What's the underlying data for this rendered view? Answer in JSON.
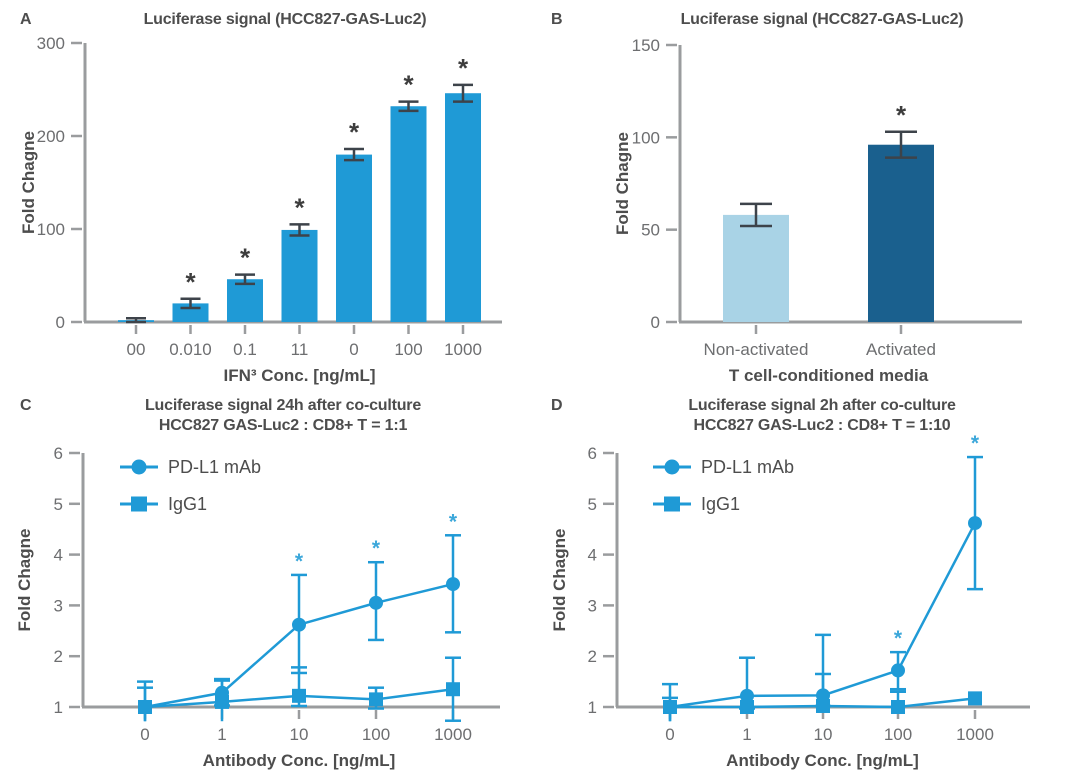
{
  "colors": {
    "primary_blue": "#1f9ad6",
    "light_blue_bar": "#a9d3e6",
    "dark_blue_bar": "#1a608e",
    "error_bar_dark": "#3d434a",
    "axis_gray": "#9a9c9e",
    "tick_label_gray": "#6d6e70",
    "heading_text": "#4d4d4d",
    "star_dark": "#3d3d3d",
    "star_blue": "#3ba7da"
  },
  "chart_data": [
    {
      "panel": "A",
      "type": "bar",
      "title": "Luciferase signal (HCC827-GAS-Luc2)",
      "subtitle": "",
      "ylabel": "Fold Chagne",
      "xlabel": "IFN³ Conc. [ng/mL]",
      "ylim": [
        0,
        300
      ],
      "yticks": [
        0,
        100,
        200,
        300
      ],
      "categories": [
        "00",
        "0.010",
        "0.1",
        "11",
        "0",
        "100",
        "1000"
      ],
      "values": [
        2,
        20,
        46,
        99,
        180,
        232,
        246
      ],
      "errors": [
        2,
        5,
        5,
        6,
        6,
        5,
        9
      ],
      "significant": [
        false,
        true,
        true,
        true,
        true,
        true,
        true
      ],
      "bar_colors": [
        "#1f9ad6",
        "#1f9ad6",
        "#1f9ad6",
        "#1f9ad6",
        "#1f9ad6",
        "#1f9ad6",
        "#1f9ad6"
      ],
      "grid": false,
      "legend": null
    },
    {
      "panel": "B",
      "type": "bar",
      "title": "Luciferase signal (HCC827-GAS-Luc2)",
      "subtitle": "",
      "ylabel": "Fold Chagne",
      "xlabel": "T cell-conditioned media",
      "ylim": [
        0,
        150
      ],
      "yticks": [
        0,
        50,
        100,
        150
      ],
      "categories": [
        "Non-activated",
        "Activated"
      ],
      "values": [
        58,
        96
      ],
      "errors": [
        6,
        7
      ],
      "significant": [
        false,
        true
      ],
      "bar_colors": [
        "#a9d3e6",
        "#1a608e"
      ],
      "grid": false,
      "legend": null
    },
    {
      "panel": "C",
      "type": "line",
      "title": "Luciferase signal 24h after co-culture",
      "subtitle": "HCC827 GAS-Luc2 : CD8+ T = 1:1",
      "ylabel": "Fold Chagne",
      "xlabel": "Antibody Conc. [ng/mL]",
      "ylim": [
        1,
        6
      ],
      "yticks": [
        1,
        2,
        3,
        4,
        5,
        6
      ],
      "categories": [
        "0",
        "1",
        "10",
        "100",
        "1000"
      ],
      "grid": false,
      "legend": "top-left",
      "series": [
        {
          "name": "PD-L1 mAb",
          "marker": "circle",
          "values": [
            1.0,
            1.28,
            2.62,
            3.05,
            3.42
          ],
          "err_up": [
            0.5,
            0.27,
            0.98,
            0.8,
            0.96
          ],
          "err_dn": [
            0.5,
            0.25,
            0.95,
            0.73,
            0.95
          ],
          "sig": [
            false,
            false,
            true,
            true,
            true
          ]
        },
        {
          "name": "IgG1",
          "marker": "square",
          "values": [
            1.0,
            1.1,
            1.22,
            1.15,
            1.35
          ],
          "err_up": [
            0.38,
            0.42,
            0.56,
            0.23,
            0.62
          ],
          "err_dn": [
            0.4,
            0.45,
            0.2,
            0.18,
            0.62
          ],
          "sig": [
            false,
            false,
            false,
            false,
            false
          ]
        }
      ]
    },
    {
      "panel": "D",
      "type": "line",
      "title": "Luciferase signal 2h after co-culture",
      "subtitle": "HCC827 GAS-Luc2 : CD8+ T = 1:10",
      "ylabel": "Fold Chagne",
      "xlabel": "Antibody Conc. [ng/mL]",
      "ylim": [
        1,
        6
      ],
      "yticks": [
        1,
        2,
        3,
        4,
        5,
        6
      ],
      "categories": [
        "0",
        "1",
        "10",
        "100",
        "1000"
      ],
      "grid": false,
      "legend": "top-left",
      "series": [
        {
          "name": "PD-L1 mAb",
          "marker": "circle",
          "values": [
            1.0,
            1.22,
            1.23,
            1.72,
            4.62
          ],
          "err_up": [
            0.45,
            0.75,
            1.19,
            0.36,
            1.3
          ],
          "err_dn": [
            0.3,
            0.25,
            0.21,
            0.37,
            1.3
          ],
          "sig": [
            false,
            false,
            false,
            true,
            true
          ]
        },
        {
          "name": "IgG1",
          "marker": "square",
          "values": [
            1.0,
            1.0,
            1.02,
            1.0,
            1.17
          ],
          "err_up": [
            0.18,
            0.0,
            0.63,
            0.3,
            0.0
          ],
          "err_dn": [
            0.3,
            0.0,
            0.0,
            0.0,
            0.0
          ],
          "sig": [
            false,
            false,
            false,
            false,
            false
          ]
        }
      ]
    }
  ]
}
